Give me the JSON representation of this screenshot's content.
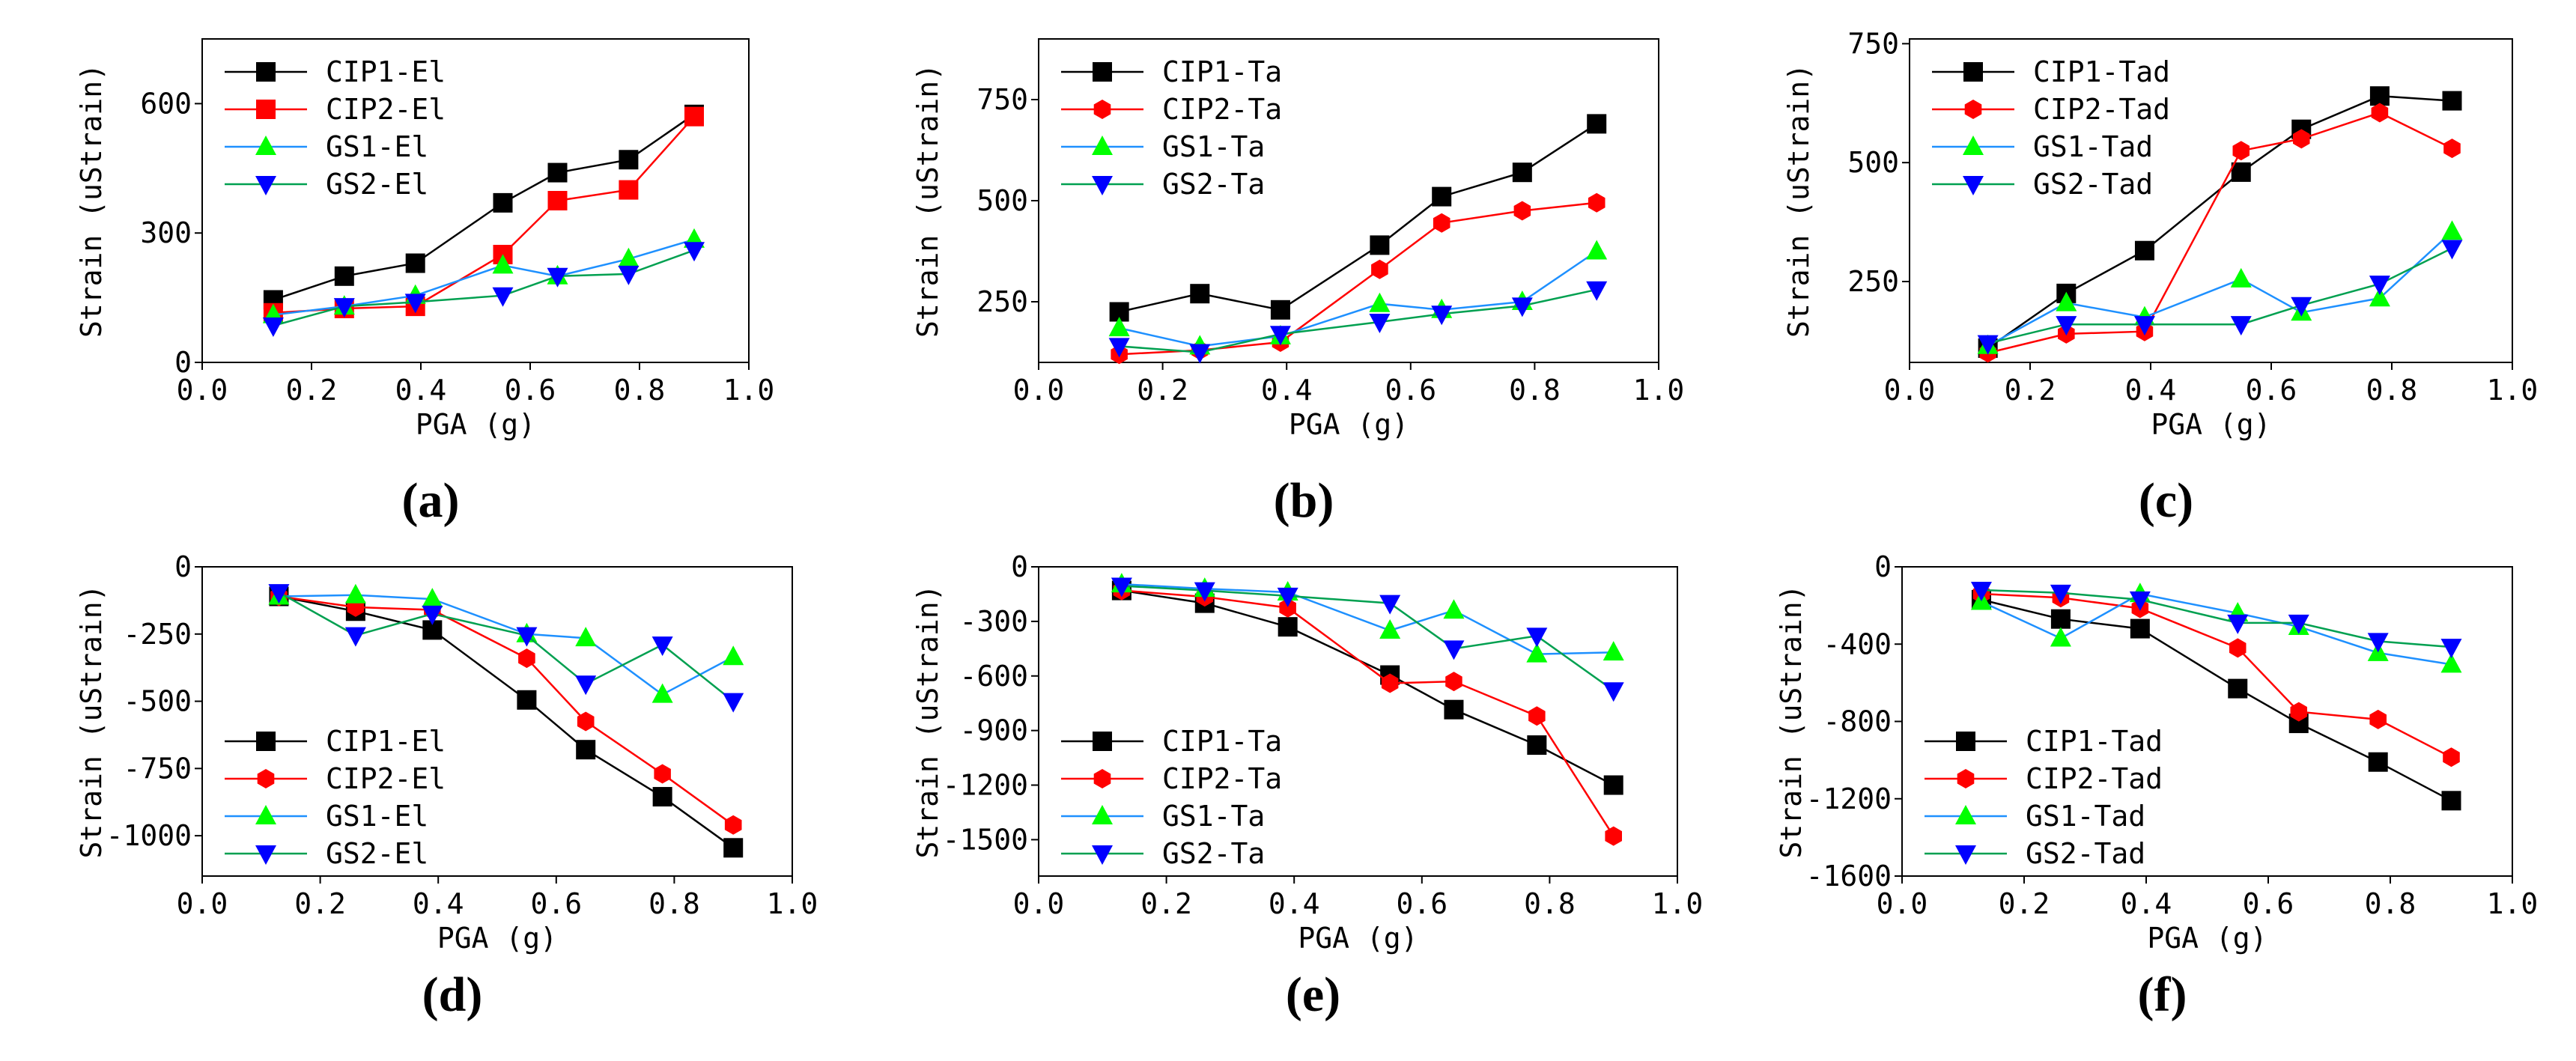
{
  "colors": {
    "CIP1": "#000000",
    "CIP2": "#ff0000",
    "GS1": "#00ff00",
    "GS2": "#0000ff",
    "GS1_line": "#1e90ff",
    "GS2_line": "#00a050",
    "axis": "#000000"
  },
  "chart_data": [
    {
      "type": "line",
      "panel_label": "(a)",
      "xlabel": "PGA (g)",
      "ylabel": "Strain (uStrain)",
      "xlim": [
        0.0,
        1.0
      ],
      "ylim": [
        0,
        750
      ],
      "xticks": [
        0.0,
        0.2,
        0.4,
        0.6,
        0.8,
        1.0
      ],
      "xtick_labels": [
        "0.0",
        "0.2",
        "0.4",
        "0.6",
        "0.8",
        "1.0"
      ],
      "yticks": [
        0,
        300,
        600
      ],
      "ytick_labels": [
        "0",
        "300",
        "600"
      ],
      "legend_position": "top-left",
      "x": [
        0.13,
        0.26,
        0.39,
        0.55,
        0.65,
        0.78,
        0.9
      ],
      "series": [
        {
          "name": "CIP1-El",
          "marker": "square",
          "values": [
            145,
            200,
            230,
            370,
            440,
            470,
            575
          ]
        },
        {
          "name": "CIP2-El",
          "marker": "square",
          "values": [
            115,
            125,
            130,
            250,
            375,
            400,
            570
          ]
        },
        {
          "name": "GS1-El",
          "marker": "triangle-up",
          "values": [
            110,
            130,
            155,
            225,
            200,
            240,
            285
          ]
        },
        {
          "name": "GS2-El",
          "marker": "triangle-down",
          "values": [
            85,
            130,
            140,
            155,
            200,
            205,
            260
          ]
        }
      ]
    },
    {
      "type": "line",
      "panel_label": "(b)",
      "xlabel": "PGA (g)",
      "ylabel": "Strain (uStrain)",
      "xlim": [
        0.0,
        1.0
      ],
      "ylim": [
        100,
        900
      ],
      "xticks": [
        0.0,
        0.2,
        0.4,
        0.6,
        0.8,
        1.0
      ],
      "xtick_labels": [
        "0.0",
        "0.2",
        "0.4",
        "0.6",
        "0.8",
        "1.0"
      ],
      "yticks": [
        250,
        500,
        750
      ],
      "ytick_labels": [
        "250",
        "500",
        "750"
      ],
      "legend_position": "top-left",
      "x": [
        0.13,
        0.26,
        0.39,
        0.55,
        0.65,
        0.78,
        0.9
      ],
      "series": [
        {
          "name": "CIP1-Ta",
          "marker": "square",
          "values": [
            225,
            270,
            230,
            390,
            510,
            570,
            690
          ]
        },
        {
          "name": "CIP2-Ta",
          "marker": "hexagon",
          "values": [
            120,
            130,
            150,
            330,
            445,
            475,
            495
          ]
        },
        {
          "name": "GS1-Ta",
          "marker": "triangle-up",
          "values": [
            185,
            140,
            165,
            245,
            230,
            250,
            375
          ]
        },
        {
          "name": "GS2-Ta",
          "marker": "triangle-down",
          "values": [
            140,
            125,
            170,
            200,
            220,
            240,
            280
          ]
        }
      ]
    },
    {
      "type": "line",
      "panel_label": "(c)",
      "xlabel": "PGA (g)",
      "ylabel": "Strain (uStrain)",
      "xlim": [
        0.0,
        1.0
      ],
      "ylim": [
        80,
        760
      ],
      "xticks": [
        0.0,
        0.2,
        0.4,
        0.6,
        0.8,
        1.0
      ],
      "xtick_labels": [
        "0.0",
        "0.2",
        "0.4",
        "0.6",
        "0.8",
        "1.0"
      ],
      "yticks": [
        250,
        500,
        750
      ],
      "ytick_labels": [
        "250",
        "500",
        "750"
      ],
      "legend_position": "top-left",
      "x": [
        0.13,
        0.26,
        0.39,
        0.55,
        0.65,
        0.78,
        0.9
      ],
      "series": [
        {
          "name": "CIP1-Tad",
          "marker": "square",
          "values": [
            110,
            225,
            315,
            480,
            570,
            640,
            630
          ]
        },
        {
          "name": "CIP2-Tad",
          "marker": "hexagon",
          "values": [
            100,
            140,
            145,
            525,
            550,
            605,
            530
          ]
        },
        {
          "name": "GS1-Tad",
          "marker": "triangle-up",
          "values": [
            115,
            205,
            175,
            255,
            185,
            215,
            355
          ]
        },
        {
          "name": "GS2-Tad",
          "marker": "triangle-down",
          "values": [
            120,
            160,
            160,
            160,
            200,
            245,
            320
          ]
        }
      ]
    },
    {
      "type": "line",
      "panel_label": "(d)",
      "xlabel": "PGA (g)",
      "ylabel": "Strain (uStrain)",
      "xlim": [
        0.0,
        1.0
      ],
      "ylim": [
        -1150,
        0
      ],
      "xticks": [
        0.0,
        0.2,
        0.4,
        0.6,
        0.8,
        1.0
      ],
      "xtick_labels": [
        "0.0",
        "0.2",
        "0.4",
        "0.6",
        "0.8",
        "1.0"
      ],
      "yticks": [
        0,
        -250,
        -500,
        -750,
        -1000
      ],
      "ytick_labels": [
        "0",
        "-250",
        "-500",
        "-750",
        "-1000"
      ],
      "legend_position": "bottom-left",
      "x": [
        0.13,
        0.26,
        0.39,
        0.55,
        0.65,
        0.78,
        0.9
      ],
      "series": [
        {
          "name": "CIP1-El",
          "marker": "square",
          "values": [
            -110,
            -165,
            -235,
            -495,
            -680,
            -855,
            -1045
          ]
        },
        {
          "name": "CIP2-El",
          "marker": "hexagon",
          "values": [
            -110,
            -150,
            -160,
            -340,
            -575,
            -770,
            -960
          ]
        },
        {
          "name": "GS1-El",
          "marker": "triangle-up",
          "values": [
            -110,
            -105,
            -120,
            -250,
            -265,
            -475,
            -335
          ]
        },
        {
          "name": "GS2-El",
          "marker": "triangle-down",
          "values": [
            -95,
            -255,
            -175,
            -255,
            -435,
            -290,
            -500
          ]
        }
      ]
    },
    {
      "type": "line",
      "panel_label": "(e)",
      "xlabel": "PGA (g)",
      "ylabel": "Strain (uStrain)",
      "xlim": [
        0.0,
        1.0
      ],
      "ylim": [
        -1700,
        0
      ],
      "xticks": [
        0.0,
        0.2,
        0.4,
        0.6,
        0.8,
        1.0
      ],
      "xtick_labels": [
        "0.0",
        "0.2",
        "0.4",
        "0.6",
        "0.8",
        "1.0"
      ],
      "yticks": [
        0,
        -300,
        -600,
        -900,
        -1200,
        -1500
      ],
      "ytick_labels": [
        "0",
        "-300",
        "-600",
        "-900",
        "-1200",
        "-1500"
      ],
      "legend_position": "bottom-left",
      "x": [
        0.13,
        0.26,
        0.39,
        0.55,
        0.65,
        0.78,
        0.9
      ],
      "series": [
        {
          "name": "CIP1-Ta",
          "marker": "square",
          "values": [
            -130,
            -200,
            -330,
            -595,
            -785,
            -980,
            -1200
          ]
        },
        {
          "name": "CIP2-Ta",
          "marker": "hexagon",
          "values": [
            -130,
            -165,
            -225,
            -640,
            -630,
            -820,
            -1480
          ]
        },
        {
          "name": "GS1-Ta",
          "marker": "triangle-up",
          "values": [
            -95,
            -120,
            -140,
            -350,
            -240,
            -480,
            -470
          ]
        },
        {
          "name": "GS2-Ta",
          "marker": "triangle-down",
          "values": [
            -105,
            -130,
            -160,
            -200,
            -450,
            -380,
            -680
          ]
        }
      ]
    },
    {
      "type": "line",
      "panel_label": "(f)",
      "xlabel": "PGA (g)",
      "ylabel": "Strain (uStrain)",
      "xlim": [
        0.0,
        1.0
      ],
      "ylim": [
        -1600,
        0
      ],
      "xticks": [
        0.0,
        0.2,
        0.4,
        0.6,
        0.8,
        1.0
      ],
      "xtick_labels": [
        "0.0",
        "0.2",
        "0.4",
        "0.6",
        "0.8",
        "1.0"
      ],
      "yticks": [
        0,
        -400,
        -800,
        -1200,
        -1600
      ],
      "ytick_labels": [
        "0",
        "-400",
        "-800",
        "-1200",
        "-1600"
      ],
      "legend_position": "bottom-left",
      "x": [
        0.13,
        0.26,
        0.39,
        0.55,
        0.65,
        0.78,
        0.9
      ],
      "series": [
        {
          "name": "CIP1-Tad",
          "marker": "square",
          "values": [
            -170,
            -270,
            -320,
            -630,
            -810,
            -1010,
            -1210
          ]
        },
        {
          "name": "CIP2-Tad",
          "marker": "hexagon",
          "values": [
            -140,
            -160,
            -215,
            -420,
            -750,
            -790,
            -985
          ]
        },
        {
          "name": "GS1-Tad",
          "marker": "triangle-up",
          "values": [
            -180,
            -370,
            -140,
            -240,
            -310,
            -445,
            -505
          ]
        },
        {
          "name": "GS2-Tad",
          "marker": "triangle-down",
          "values": [
            -120,
            -135,
            -170,
            -290,
            -290,
            -385,
            -415
          ]
        }
      ]
    }
  ]
}
